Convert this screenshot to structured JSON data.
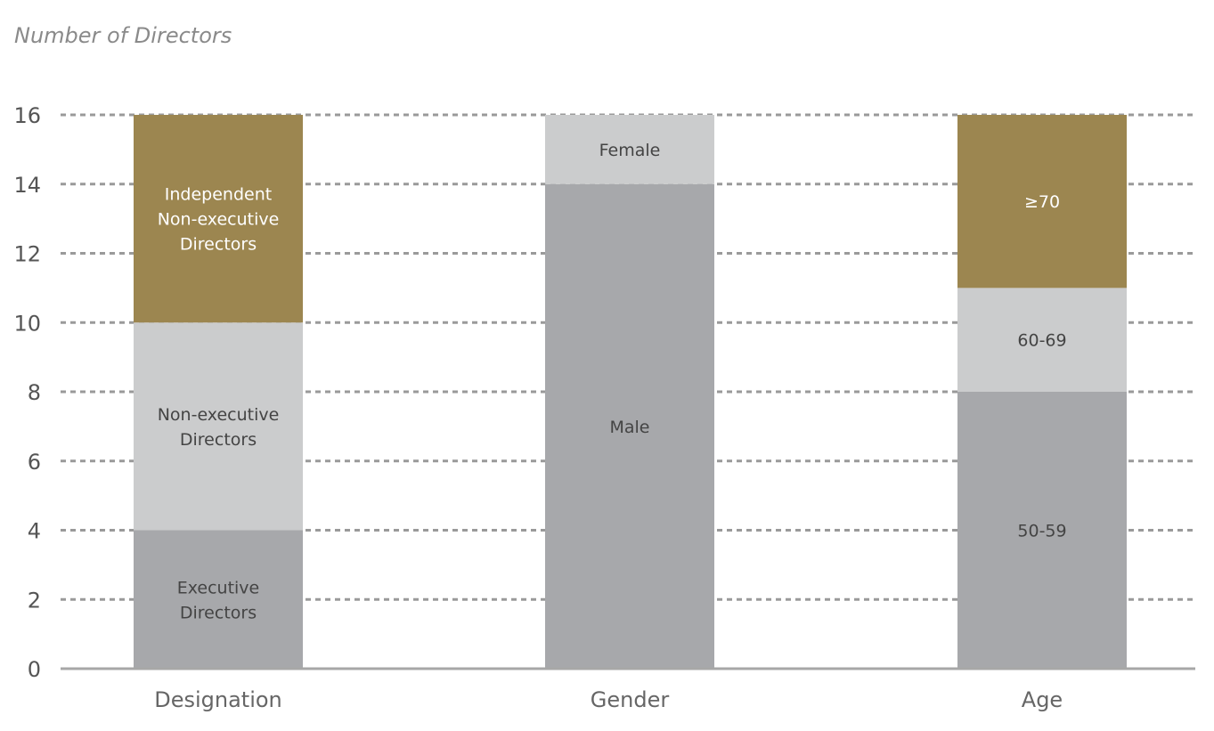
{
  "chart_data": {
    "type": "bar",
    "stacked": true,
    "ylabel": "Number of Directors",
    "ylim": [
      0,
      16
    ],
    "yticks": [
      "0",
      "2",
      "4",
      "6",
      "8",
      "10",
      "12",
      "14",
      "16"
    ],
    "grid": true,
    "categories": [
      "Designation",
      "Gender",
      "Age"
    ],
    "stacks": [
      {
        "category": "Designation",
        "segments": [
          {
            "label": [
              "Executive",
              "Directors"
            ],
            "value": 4,
            "color": "#a7a8ab",
            "text_color": "#444444"
          },
          {
            "label": [
              "Non-executive",
              "Directors"
            ],
            "value": 6,
            "color": "#cbcccd",
            "text_color": "#444444"
          },
          {
            "label": [
              "Independent",
              "Non-executive",
              "Directors"
            ],
            "value": 6,
            "color": "#9c8650",
            "text_color": "#ffffff"
          }
        ]
      },
      {
        "category": "Gender",
        "segments": [
          {
            "label": [
              "Male"
            ],
            "value": 14,
            "color": "#a7a8ab",
            "text_color": "#444444"
          },
          {
            "label": [
              "Female"
            ],
            "value": 2,
            "color": "#cbcccd",
            "text_color": "#444444"
          }
        ]
      },
      {
        "category": "Age",
        "segments": [
          {
            "label": [
              "50-59"
            ],
            "value": 8,
            "color": "#a7a8ab",
            "text_color": "#444444"
          },
          {
            "label": [
              "60-69"
            ],
            "value": 3,
            "color": "#cbcccd",
            "text_color": "#444444"
          },
          {
            "label": [
              "≥70"
            ],
            "value": 5,
            "color": "#9c8650",
            "text_color": "#ffffff"
          }
        ]
      }
    ]
  }
}
